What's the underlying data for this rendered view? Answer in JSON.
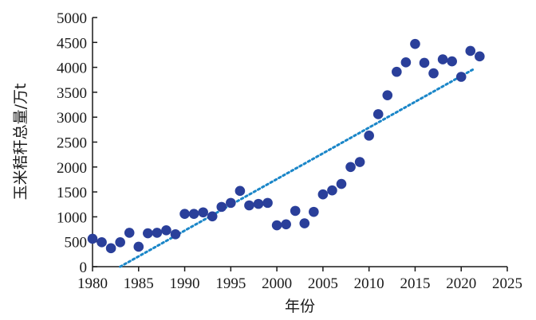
{
  "chart_data": {
    "type": "scatter",
    "xlabel": "年份",
    "ylabel": "玉米秸秆总量/万t",
    "xlim": [
      1980,
      2025
    ],
    "ylim": [
      0,
      5000
    ],
    "x_ticks": [
      1980,
      1985,
      1990,
      1995,
      2000,
      2005,
      2010,
      2015,
      2020,
      2025
    ],
    "y_ticks": [
      0,
      500,
      1000,
      1500,
      2000,
      2500,
      3000,
      3500,
      4000,
      4500,
      5000
    ],
    "grid": false,
    "colors": {
      "points": "#2a3f9a",
      "trendline": "#1a86c8"
    },
    "series": [
      {
        "points": [
          {
            "x": 1980,
            "y": 560
          },
          {
            "x": 1981,
            "y": 490
          },
          {
            "x": 1982,
            "y": 370
          },
          {
            "x": 1983,
            "y": 490
          },
          {
            "x": 1984,
            "y": 680
          },
          {
            "x": 1985,
            "y": 400
          },
          {
            "x": 1986,
            "y": 670
          },
          {
            "x": 1987,
            "y": 680
          },
          {
            "x": 1988,
            "y": 730
          },
          {
            "x": 1989,
            "y": 650
          },
          {
            "x": 1990,
            "y": 1060
          },
          {
            "x": 1991,
            "y": 1060
          },
          {
            "x": 1992,
            "y": 1090
          },
          {
            "x": 1993,
            "y": 1010
          },
          {
            "x": 1994,
            "y": 1200
          },
          {
            "x": 1995,
            "y": 1280
          },
          {
            "x": 1996,
            "y": 1520
          },
          {
            "x": 1997,
            "y": 1230
          },
          {
            "x": 1998,
            "y": 1260
          },
          {
            "x": 1999,
            "y": 1280
          },
          {
            "x": 2000,
            "y": 830
          },
          {
            "x": 2001,
            "y": 850
          },
          {
            "x": 2002,
            "y": 1120
          },
          {
            "x": 2003,
            "y": 870
          },
          {
            "x": 2004,
            "y": 1100
          },
          {
            "x": 2005,
            "y": 1450
          },
          {
            "x": 2006,
            "y": 1530
          },
          {
            "x": 2007,
            "y": 1660
          },
          {
            "x": 2008,
            "y": 2000
          },
          {
            "x": 2009,
            "y": 2100
          },
          {
            "x": 2010,
            "y": 2630
          },
          {
            "x": 2011,
            "y": 3060
          },
          {
            "x": 2012,
            "y": 3440
          },
          {
            "x": 2013,
            "y": 3910
          },
          {
            "x": 2014,
            "y": 4100
          },
          {
            "x": 2015,
            "y": 4470
          },
          {
            "x": 2016,
            "y": 4090
          },
          {
            "x": 2017,
            "y": 3880
          },
          {
            "x": 2018,
            "y": 4160
          },
          {
            "x": 2019,
            "y": 4120
          },
          {
            "x": 2020,
            "y": 3810
          },
          {
            "x": 2021,
            "y": 4330
          },
          {
            "x": 2022,
            "y": 4220
          }
        ]
      }
    ],
    "trendline": {
      "style": "dotted",
      "x": [
        1983,
        2021.5
      ],
      "y": [
        0,
        3980
      ]
    }
  }
}
